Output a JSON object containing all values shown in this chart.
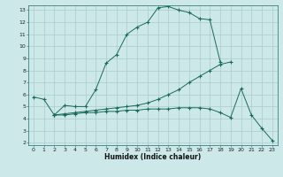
{
  "title": "",
  "xlabel": "Humidex (Indice chaleur)",
  "bg_color": "#cce8e8",
  "grid_color": "#aacccc",
  "line_color": "#1a6b5a",
  "xlim": [
    -0.5,
    23.5
  ],
  "ylim": [
    1.8,
    13.4
  ],
  "xticks": [
    0,
    1,
    2,
    3,
    4,
    5,
    6,
    7,
    8,
    9,
    10,
    11,
    12,
    13,
    14,
    15,
    16,
    17,
    18,
    19,
    20,
    21,
    22,
    23
  ],
  "yticks": [
    2,
    3,
    4,
    5,
    6,
    7,
    8,
    9,
    10,
    11,
    12,
    13
  ],
  "line1_x": [
    0,
    1,
    2,
    3,
    4,
    5,
    6,
    7,
    8,
    9,
    10,
    11,
    12,
    13,
    14,
    15,
    16,
    17,
    18
  ],
  "line1_y": [
    5.8,
    5.6,
    4.3,
    5.1,
    5.0,
    5.0,
    6.4,
    8.6,
    9.3,
    11.0,
    11.6,
    12.0,
    13.2,
    13.3,
    13.0,
    12.8,
    12.3,
    12.2,
    8.7
  ],
  "line2_x": [
    2,
    3,
    4,
    5,
    6,
    7,
    8,
    9,
    10,
    11,
    12,
    13,
    14,
    15,
    16,
    17,
    18,
    19
  ],
  "line2_y": [
    4.3,
    4.4,
    4.5,
    4.6,
    4.7,
    4.8,
    4.9,
    5.0,
    5.1,
    5.3,
    5.6,
    6.0,
    6.4,
    7.0,
    7.5,
    8.0,
    8.5,
    8.7
  ],
  "line3_x": [
    2,
    3,
    4,
    5,
    6,
    7,
    8,
    9,
    10,
    11,
    12,
    13,
    14,
    15,
    16,
    17,
    18,
    19,
    20,
    21,
    22,
    23
  ],
  "line3_y": [
    4.3,
    4.3,
    4.4,
    4.5,
    4.5,
    4.6,
    4.6,
    4.7,
    4.7,
    4.8,
    4.8,
    4.8,
    4.9,
    4.9,
    4.9,
    4.8,
    4.5,
    4.1,
    6.5,
    4.3,
    3.2,
    2.2
  ]
}
